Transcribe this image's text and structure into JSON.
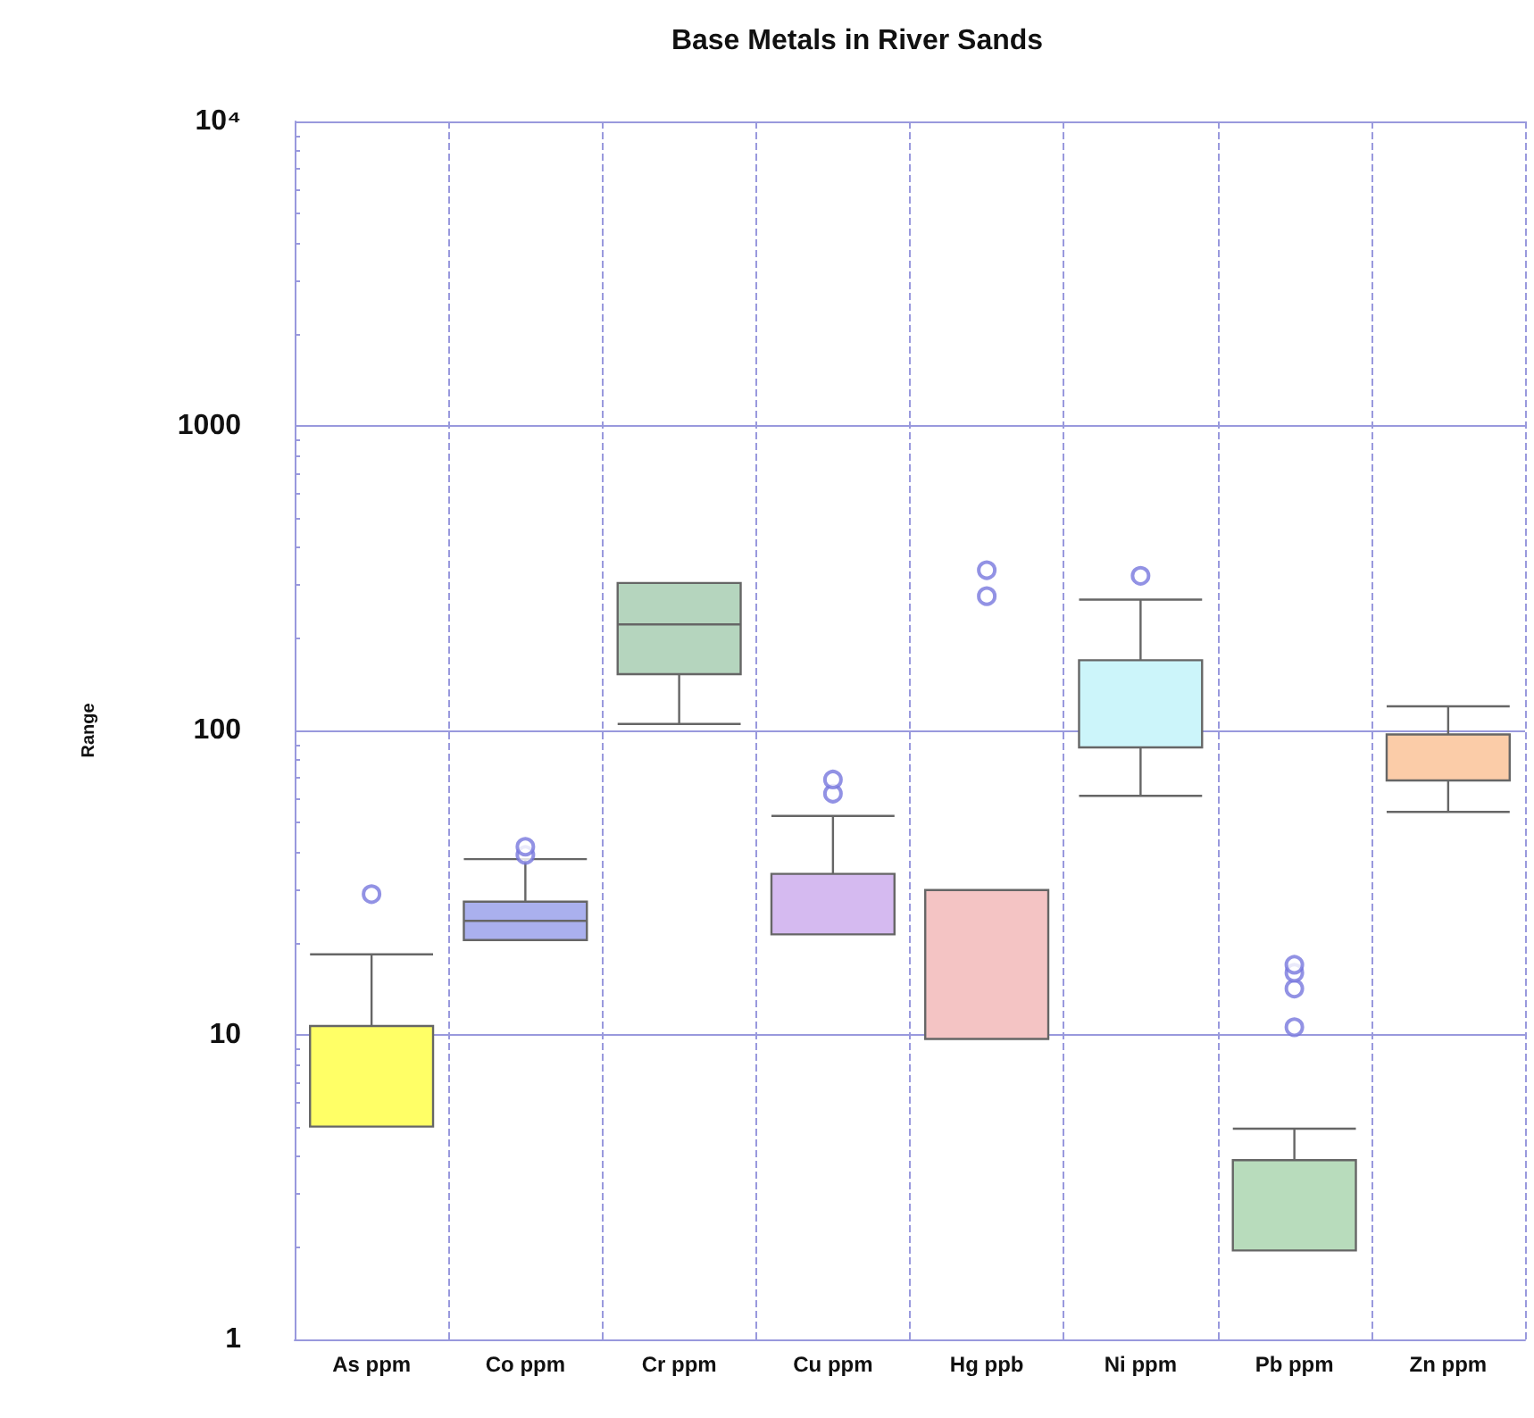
{
  "chart_data": {
    "type": "box",
    "title": "Base Metals in River Sands",
    "ylabel": "Range",
    "categories": [
      "As ppm",
      "Co ppm",
      "Cr ppm",
      "Cu ppm",
      "Hg ppb",
      "Ni ppm",
      "Pb ppm",
      "Zn ppm"
    ],
    "colors": [
      "#ffff66",
      "#aab0ee",
      "#b5d5be",
      "#d5baf0",
      "#f4c4c4",
      "#ccf5fa",
      "#b8dcbc",
      "#fbcca8"
    ],
    "boxes": [
      {
        "low": 5,
        "q1": 5,
        "median": 5,
        "q3": 10.7,
        "high": 18.4,
        "outliers": [
          29
        ]
      },
      {
        "low": 20.5,
        "q1": 20.5,
        "median": 23.7,
        "q3": 27.4,
        "high": 37.8,
        "outliers": [
          39,
          41.5
        ]
      },
      {
        "low": 105,
        "q1": 153,
        "median": 223,
        "q3": 305,
        "high": 305
      },
      {
        "low": 21.4,
        "q1": 21.4,
        "median": 21.4,
        "q3": 33.8,
        "high": 52.4,
        "outliers": [
          62,
          69
        ]
      },
      {
        "low": 9.7,
        "q1": 9.7,
        "median": 9.7,
        "q3": 29.9,
        "high": 29.9,
        "outliers": [
          276,
          336
        ]
      },
      {
        "low": 61,
        "q1": 88,
        "median": 88,
        "q3": 170,
        "high": 269,
        "outliers": [
          322
        ]
      },
      {
        "low": 1.96,
        "q1": 1.96,
        "median": 1.96,
        "q3": 3.88,
        "high": 4.92,
        "outliers": [
          10.6,
          14.2,
          16,
          17
        ]
      },
      {
        "low": 54,
        "q1": 68.5,
        "median": 68.5,
        "q3": 97,
        "high": 120
      }
    ],
    "log": "y",
    "ylim": [
      1,
      10000
    ],
    "yticks": [
      1,
      10,
      100,
      1000,
      {
        "value": 10000,
        "label": "10⁴"
      }
    ],
    "grid": true
  }
}
